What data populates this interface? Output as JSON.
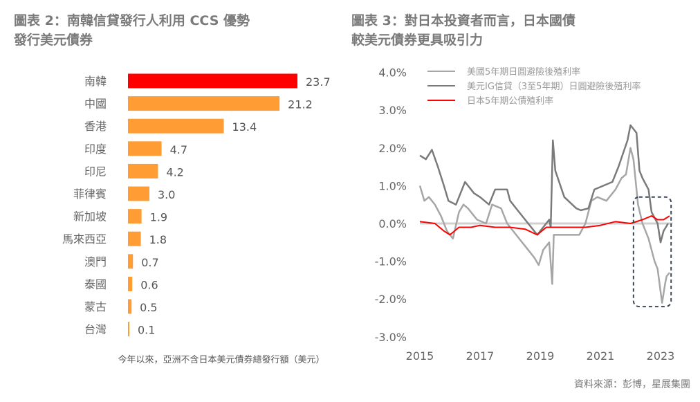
{
  "left_title": [
    "圖表 2：南韓信貸發行人利用 CCS 優勢",
    "發行美元債券"
  ],
  "right_title": [
    "圖表 3：對日本投資者而言，日本國債",
    "較美元債券更具吸引力"
  ],
  "source": "資料來源：彭博，星展集團",
  "colors": {
    "highlight": "#ff0000",
    "bar": "#ff9c33",
    "light_series": "#a6a6a6",
    "dark_series": "#7a7a7a",
    "red_series": "#ff0000",
    "box": "#3b4656"
  },
  "chart_data": [
    {
      "type": "bar",
      "orientation": "horizontal",
      "title": "圖表 2：南韓信貸發行人利用 CCS 優勢發行美元債券",
      "xlabel": "今年以來，亞洲不含日本美元債券總發行額（美元）",
      "categories": [
        "南韓",
        "中國",
        "香港",
        "印度",
        "印尼",
        "菲律賓",
        "新加坡",
        "馬來西亞",
        "澳門",
        "泰國",
        "蒙古",
        "台灣"
      ],
      "values": [
        23.7,
        21.2,
        13.4,
        4.7,
        4.2,
        3.0,
        1.9,
        1.8,
        0.7,
        0.6,
        0.5,
        0.1
      ],
      "value_labels": [
        "23.7",
        "21.2",
        "13.4",
        "4.7",
        "4.2",
        "3.0",
        "1.9",
        "1.8",
        "0.7",
        "0.6",
        "0.5",
        "0.1"
      ],
      "highlight_index": 0
    },
    {
      "type": "line",
      "title": "圖表 3：對日本投資者而言，日本國債較美元債券更具吸引力",
      "ylim": [
        -3.0,
        4.0
      ],
      "xlim": [
        2015,
        2023.4
      ],
      "yticks": [
        "4.0%",
        "3.0%",
        "2.0%",
        "1.0%",
        "0.0%",
        "-1.0%",
        "-2.0%",
        "-3.0%"
      ],
      "ytick_values": [
        4,
        3,
        2,
        1,
        0,
        -1,
        -2,
        -3
      ],
      "xticks": [
        "2015",
        "2017",
        "2019",
        "2021",
        "2023"
      ],
      "xtick_values": [
        2015,
        2017,
        2019,
        2021,
        2023
      ],
      "legend_placement": "top",
      "annotation_box": {
        "x": [
          2022.1,
          2023.35
        ],
        "y": [
          -2.2,
          0.7
        ]
      },
      "series": [
        {
          "name": "美國5年期日圓避險後殖利率",
          "color": "#a6a6a6",
          "x": [
            2015.0,
            2015.15,
            2015.3,
            2015.5,
            2015.7,
            2015.9,
            2016.1,
            2016.3,
            2016.45,
            2016.6,
            2016.9,
            2017.2,
            2017.4,
            2017.7,
            2017.9,
            2018.2,
            2018.5,
            2018.8,
            2018.95,
            2019.1,
            2019.3,
            2019.4,
            2019.45,
            2019.7,
            2020.0,
            2020.3,
            2020.5,
            2020.7,
            2020.9,
            2021.2,
            2021.5,
            2021.7,
            2021.85,
            2022.0,
            2022.1,
            2022.25,
            2022.4,
            2022.6,
            2022.8,
            2022.9,
            2023.0,
            2023.05,
            2023.15,
            2023.2,
            2023.3
          ],
          "y": [
            1.0,
            0.6,
            0.7,
            0.5,
            0.2,
            -0.2,
            -0.4,
            0.3,
            0.5,
            0.4,
            0.1,
            0.0,
            0.5,
            0.4,
            0.0,
            -0.3,
            -0.6,
            -0.9,
            -1.1,
            -0.7,
            -0.5,
            -1.6,
            -0.3,
            -0.3,
            -0.3,
            -0.3,
            0.0,
            0.6,
            0.7,
            0.6,
            0.9,
            1.2,
            1.3,
            2.0,
            1.7,
            0.5,
            0.0,
            -0.4,
            -1.0,
            -1.2,
            -1.8,
            -2.1,
            -1.6,
            -1.4,
            -1.3
          ]
        },
        {
          "name": "美元IG信貸（3至5年期）日圓避險後殖利率",
          "color": "#7a7a7a",
          "x": [
            2015.0,
            2015.2,
            2015.4,
            2015.6,
            2015.8,
            2015.95,
            2016.2,
            2016.5,
            2016.8,
            2017.0,
            2017.3,
            2017.5,
            2017.9,
            2018.0,
            2018.3,
            2018.6,
            2018.9,
            2019.1,
            2019.3,
            2019.35,
            2019.42,
            2019.5,
            2019.8,
            2020.2,
            2020.35,
            2020.6,
            2020.8,
            2021.1,
            2021.4,
            2021.6,
            2021.9,
            2022.0,
            2022.2,
            2022.3,
            2022.4,
            2022.6,
            2022.7,
            2022.9,
            2023.0,
            2023.1,
            2023.25
          ],
          "y": [
            1.8,
            1.7,
            1.95,
            1.5,
            1.0,
            0.6,
            0.5,
            1.1,
            0.8,
            0.7,
            0.5,
            0.9,
            0.9,
            0.6,
            0.3,
            0.0,
            -0.3,
            -0.1,
            0.1,
            -0.1,
            2.2,
            1.4,
            0.7,
            0.4,
            0.35,
            0.4,
            0.9,
            1.0,
            1.1,
            1.5,
            2.2,
            2.6,
            2.4,
            1.4,
            1.2,
            0.9,
            0.3,
            0.0,
            -0.5,
            -0.2,
            0.0
          ]
        },
        {
          "name": "日本5年期公債殖利率",
          "color": "#ff0000",
          "x": [
            2015.0,
            2015.5,
            2015.8,
            2016.0,
            2016.3,
            2016.7,
            2017.0,
            2017.5,
            2018.0,
            2018.5,
            2018.9,
            2019.2,
            2019.6,
            2020.0,
            2020.5,
            2021.0,
            2021.5,
            2022.0,
            2022.4,
            2022.7,
            2022.9,
            2023.1,
            2023.3
          ],
          "y": [
            0.05,
            0.0,
            -0.2,
            -0.3,
            -0.1,
            -0.1,
            -0.05,
            -0.1,
            -0.1,
            -0.15,
            -0.3,
            -0.1,
            -0.1,
            -0.1,
            -0.1,
            -0.05,
            0.05,
            0.0,
            0.1,
            0.2,
            0.1,
            0.1,
            0.2
          ]
        }
      ]
    }
  ]
}
